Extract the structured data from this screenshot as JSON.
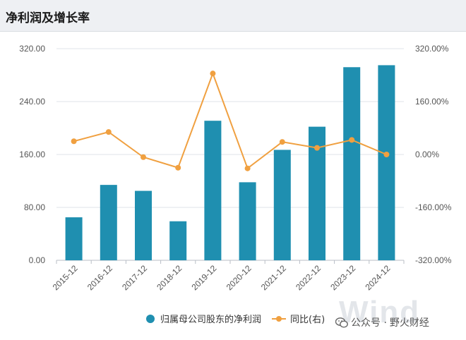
{
  "title": "净利润及增长率",
  "wechat": {
    "prefix": "公众号 · ",
    "account": "野火财经"
  },
  "watermark": "Wind",
  "colors": {
    "bar": "#1f8fb0",
    "line": "#f0a040",
    "grid": "#dfe3e8",
    "axis_text": "#555555"
  },
  "chart_data": {
    "type": "bar+line",
    "categories": [
      "2015-12",
      "2016-12",
      "2017-12",
      "2018-12",
      "2019-12",
      "2020-12",
      "2021-12",
      "2022-12",
      "2023-12",
      "2024-12"
    ],
    "series": [
      {
        "name": "归属母公司股东的净利润",
        "type": "bar",
        "axis": "left",
        "values": [
          65,
          114,
          105,
          59,
          211,
          118,
          167,
          202,
          292,
          295
        ]
      },
      {
        "name": "同比(右)",
        "type": "line",
        "axis": "right",
        "values": [
          40,
          68,
          -8,
          -40,
          245,
          -42,
          38,
          20,
          44,
          0
        ]
      }
    ],
    "y_left": {
      "ylim": [
        0,
        320
      ],
      "ticks": [
        "0.00",
        "80.00",
        "160.00",
        "240.00",
        "320.00"
      ]
    },
    "y_right": {
      "ylim": [
        -320,
        320
      ],
      "ticks": [
        "-320.00%",
        "-160.00%",
        "0.00%",
        "160.00%",
        "320.00%"
      ]
    },
    "legend_position": "bottom"
  }
}
